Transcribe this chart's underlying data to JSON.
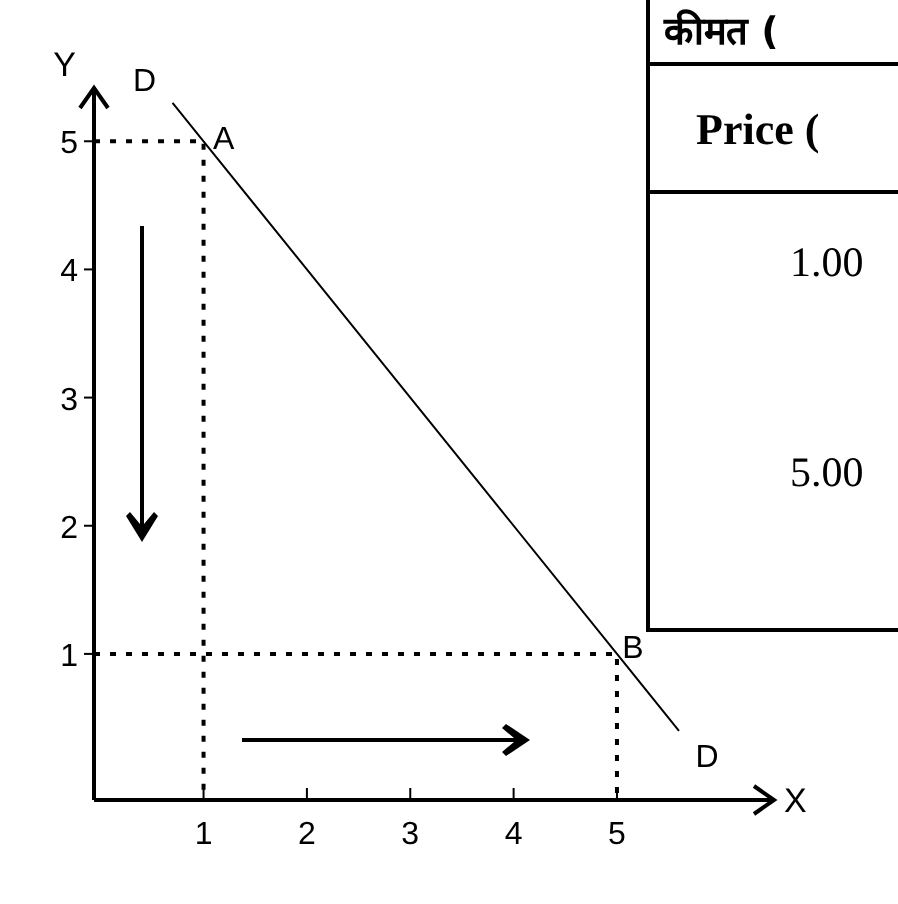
{
  "chart_data": {
    "type": "line",
    "xlabel": "X",
    "ylabel": "Y",
    "xlim": [
      -0.06,
      6.5
    ],
    "ylim": [
      -0.14,
      5.4
    ],
    "xticks": [
      1,
      2,
      3,
      4,
      5
    ],
    "yticks": [
      1,
      2,
      3,
      4,
      5
    ],
    "grid": false,
    "series": [
      {
        "color": "#000000",
        "line_style": "solid",
        "x": [
          0.7,
          1,
          5,
          5.6
        ],
        "values": [
          5.3,
          5,
          1,
          0.4
        ]
      },
      {
        "color": "#000000",
        "line_style": "dotted",
        "x": [
          -0.06,
          1,
          1
        ],
        "values": [
          5,
          5,
          -0.14
        ]
      },
      {
        "color": "#000000",
        "line_style": "dotted",
        "x": [
          -0.06,
          5,
          5
        ],
        "values": [
          1,
          1,
          -0.14
        ]
      }
    ],
    "annotations": [
      "D",
      "A",
      "B",
      "D",
      "कीमत (",
      "Price (",
      "1.00",
      "5.00"
    ]
  }
}
